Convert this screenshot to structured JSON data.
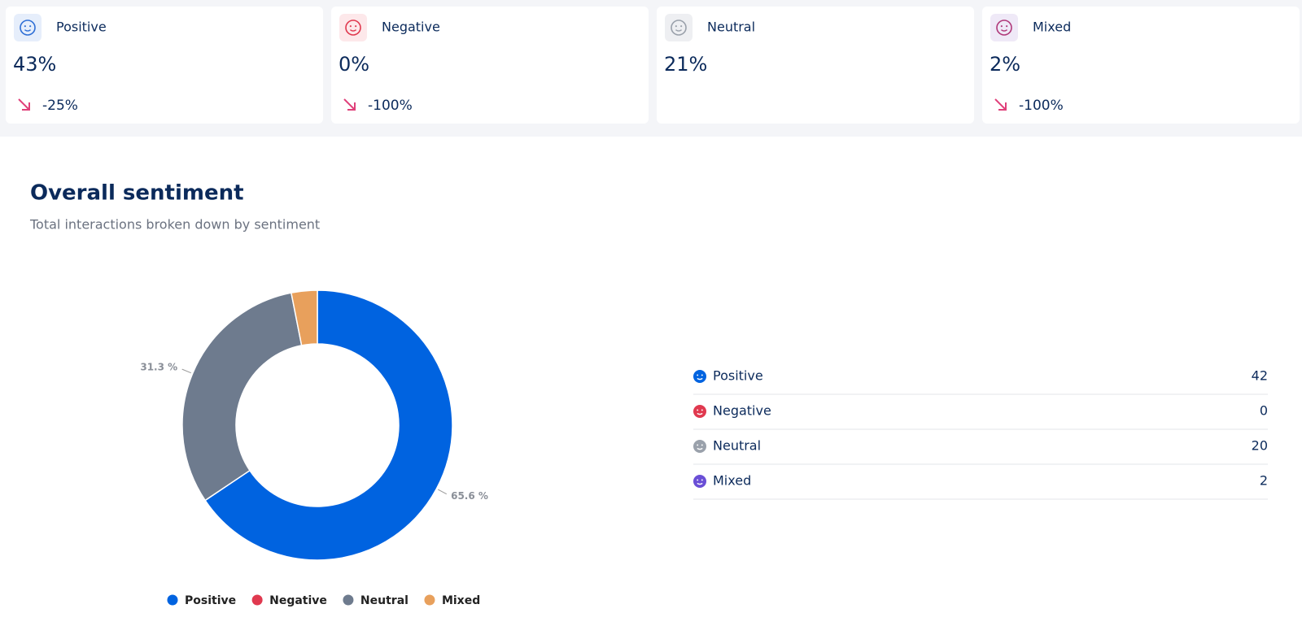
{
  "cards": [
    {
      "label": "Positive",
      "value": "43%",
      "change": "-25%"
    },
    {
      "label": "Negative",
      "value": "0%",
      "change": "-100%"
    },
    {
      "label": "Neutral",
      "value": "21%"
    },
    {
      "label": "Mixed",
      "value": "2%",
      "change": "-100%"
    }
  ],
  "chart_data": {
    "type": "donut",
    "title": "Overall sentiment",
    "subtitle": "Total interactions broken down by sentiment",
    "categories": [
      "Positive",
      "Negative",
      "Neutral",
      "Mixed"
    ],
    "values": [
      65.6,
      0,
      31.3,
      3.1
    ],
    "value_labels": [
      "65.6 %",
      null,
      "31.3 %",
      null
    ],
    "colors": [
      "#0063e0",
      "#e0394f",
      "#6e7b8e",
      "#e8a05c"
    ]
  },
  "breakdown": {
    "rows": [
      {
        "label": "Positive",
        "count": 42
      },
      {
        "label": "Negative",
        "count": 0
      },
      {
        "label": "Neutral",
        "count": 20
      },
      {
        "label": "Mixed",
        "count": 2
      }
    ]
  }
}
